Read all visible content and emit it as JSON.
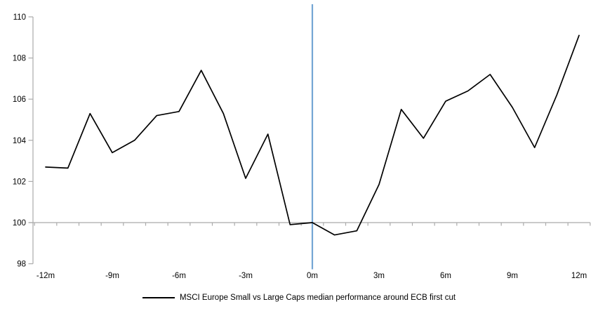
{
  "chart_data": {
    "type": "line",
    "x": [
      -12,
      -11,
      -10,
      -9,
      -8,
      -7,
      -6,
      -5,
      -4,
      -3,
      -2,
      -1,
      0,
      1,
      2,
      3,
      4,
      5,
      6,
      7,
      8,
      9,
      10,
      11,
      12
    ],
    "series": [
      {
        "name": "MSCI Europe Small vs Large Caps median performance around ECB first cut",
        "color": "#000000",
        "values": [
          102.7,
          102.65,
          105.3,
          103.4,
          104.0,
          105.2,
          105.4,
          107.4,
          105.3,
          102.15,
          104.3,
          99.9,
          100.0,
          99.4,
          99.6,
          101.85,
          105.5,
          104.1,
          105.9,
          106.4,
          107.2,
          105.6,
          103.65,
          106.2,
          109.1
        ]
      }
    ],
    "x_tick_months": [
      -12,
      -9,
      -6,
      -3,
      0,
      3,
      6,
      9,
      12
    ],
    "x_tick_labels": [
      "-12m",
      "-9m",
      "-6m",
      "-3m",
      "0m",
      "3m",
      "6m",
      "9m",
      "12m"
    ],
    "y_ticks": [
      98,
      100,
      102,
      104,
      106,
      108,
      110
    ],
    "ylim": [
      98,
      110
    ],
    "xlim": [
      -12,
      12
    ],
    "x_axis_cross_value": 100,
    "event_line": {
      "month": 0,
      "color": "#74A6D4"
    },
    "axis_color": "#ababab",
    "background": "#ffffff",
    "grid": false,
    "legend_position": "bottom-center"
  }
}
